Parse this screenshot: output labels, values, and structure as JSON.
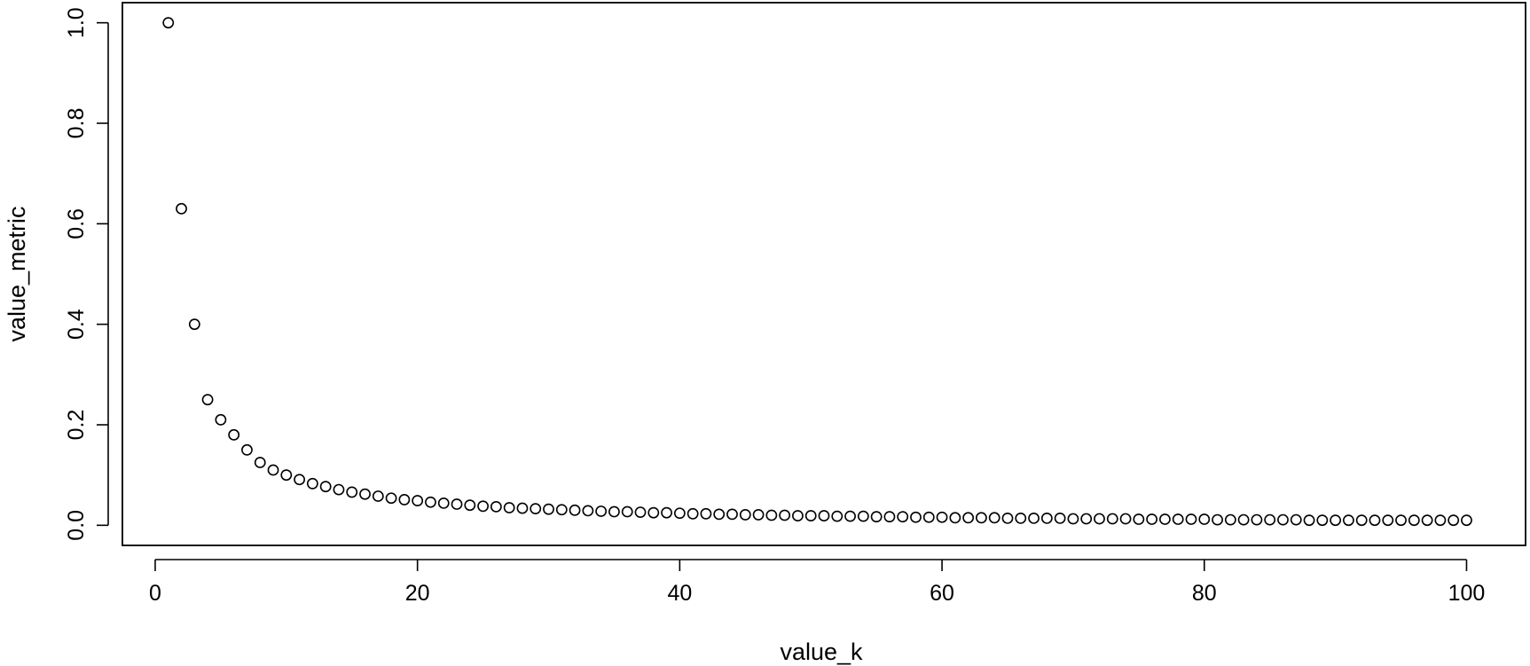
{
  "chart_data": {
    "type": "scatter",
    "title": "",
    "xlabel": "value_k",
    "ylabel": "value_metric",
    "xlim": [
      -2.5,
      104.5
    ],
    "ylim": [
      -0.04,
      1.04
    ],
    "xticks": [
      0,
      20,
      40,
      60,
      80,
      100
    ],
    "yticks": [
      0.0,
      0.2,
      0.4,
      0.6,
      0.8,
      1.0
    ],
    "xtick_labels": [
      "0",
      "20",
      "40",
      "60",
      "80",
      "100"
    ],
    "ytick_labels": [
      "0.0",
      "0.2",
      "0.4",
      "0.6",
      "0.8",
      "1.0"
    ],
    "grid": false,
    "marker": "open-circle",
    "series": [
      {
        "x": [
          1,
          2,
          3,
          4,
          5,
          6,
          7,
          8,
          9,
          10,
          11,
          12,
          13,
          14,
          15,
          16,
          17,
          18,
          19,
          20,
          21,
          22,
          23,
          24,
          25,
          26,
          27,
          28,
          29,
          30,
          31,
          32,
          33,
          34,
          35,
          36,
          37,
          38,
          39,
          40,
          41,
          42,
          43,
          44,
          45,
          46,
          47,
          48,
          49,
          50,
          51,
          52,
          53,
          54,
          55,
          56,
          57,
          58,
          59,
          60,
          61,
          62,
          63,
          64,
          65,
          66,
          67,
          68,
          69,
          70,
          71,
          72,
          73,
          74,
          75,
          76,
          77,
          78,
          79,
          80,
          81,
          82,
          83,
          84,
          85,
          86,
          87,
          88,
          89,
          90,
          91,
          92,
          93,
          94,
          95,
          96,
          97,
          98,
          99,
          100
        ],
        "y": [
          1.0,
          0.63,
          0.4,
          0.25,
          0.21,
          0.18,
          0.15,
          0.125,
          0.11,
          0.1,
          0.091,
          0.083,
          0.077,
          0.071,
          0.066,
          0.062,
          0.058,
          0.054,
          0.051,
          0.049,
          0.046,
          0.044,
          0.042,
          0.04,
          0.038,
          0.037,
          0.035,
          0.034,
          0.033,
          0.032,
          0.031,
          0.03,
          0.029,
          0.028,
          0.027,
          0.027,
          0.026,
          0.025,
          0.025,
          0.024,
          0.023,
          0.023,
          0.022,
          0.022,
          0.021,
          0.021,
          0.02,
          0.02,
          0.019,
          0.019,
          0.019,
          0.018,
          0.018,
          0.018,
          0.017,
          0.017,
          0.017,
          0.016,
          0.016,
          0.016,
          0.015,
          0.015,
          0.015,
          0.015,
          0.014,
          0.014,
          0.014,
          0.014,
          0.014,
          0.013,
          0.013,
          0.013,
          0.013,
          0.013,
          0.012,
          0.012,
          0.012,
          0.012,
          0.012,
          0.012,
          0.011,
          0.011,
          0.011,
          0.011,
          0.011,
          0.011,
          0.011,
          0.01,
          0.01,
          0.01,
          0.01,
          0.01,
          0.01,
          0.01,
          0.01,
          0.01,
          0.01,
          0.01,
          0.01,
          0.01
        ]
      }
    ]
  }
}
